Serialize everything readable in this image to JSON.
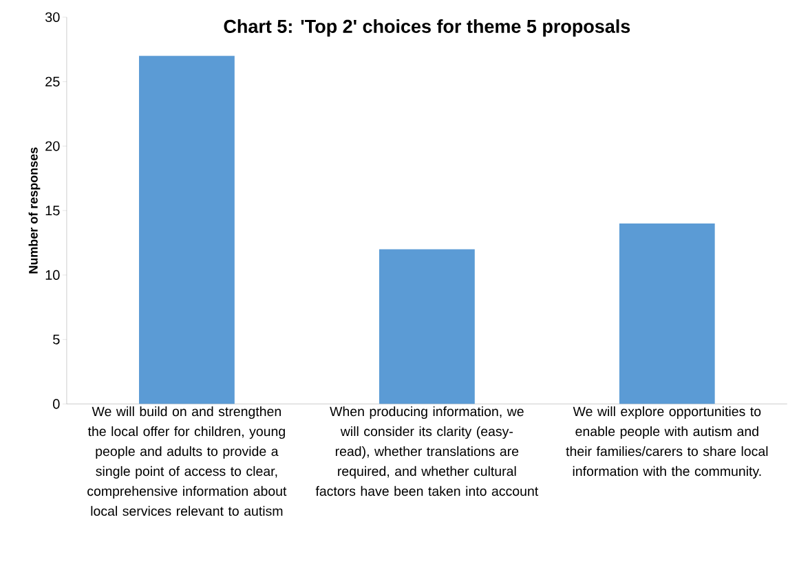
{
  "chart_data": {
    "type": "bar",
    "title": "Chart 5: 'Top 2' choices for theme 5 proposals",
    "ylabel": "Number of responses",
    "categories": [
      "We will build on and strengthen the local offer for children, young people and adults to provide a single point of access to clear, comprehensive information about local services relevant to autism",
      "When producing information, we will consider its clarity (easy-read), whether translations are required, and whether cultural factors have been taken into account",
      "We will explore opportunities to enable people with autism and their families/carers to share local information with the community."
    ],
    "values": [
      27,
      12,
      14
    ],
    "color": "#5b9bd5",
    "ylim": [
      0,
      30
    ],
    "yticks": [
      0,
      5,
      10,
      15,
      20,
      25,
      30
    ]
  }
}
